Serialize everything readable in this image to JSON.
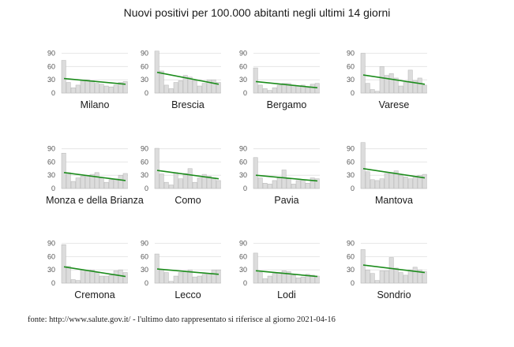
{
  "chart_data": {
    "type": "bar",
    "title": "Nuovi positivi per 100.000 abitanti negli ultimi 14 giorni",
    "ylim": [
      0,
      100
    ],
    "yticks": [
      0,
      30,
      60,
      90
    ],
    "grid": true,
    "colors": {
      "bar_fill": "#dcdcdc",
      "bar_stroke": "#b4b4b4",
      "trend": "#1c8c1c",
      "grid": "#e6e6e6"
    },
    "panels": [
      {
        "name": "Milano",
        "values": [
          74,
          24,
          12,
          18,
          30,
          30,
          28,
          22,
          20,
          16,
          14,
          18,
          24,
          26
        ],
        "trend": [
          33,
          20
        ]
      },
      {
        "name": "Brescia",
        "values": [
          95,
          50,
          18,
          10,
          24,
          28,
          40,
          36,
          28,
          16,
          22,
          30,
          30,
          24
        ],
        "trend": [
          47,
          20
        ]
      },
      {
        "name": "Bergamo",
        "values": [
          57,
          18,
          10,
          6,
          12,
          18,
          22,
          22,
          18,
          16,
          18,
          12,
          20,
          22
        ],
        "trend": [
          26,
          12
        ]
      },
      {
        "name": "Varese",
        "values": [
          90,
          22,
          8,
          4,
          60,
          40,
          44,
          34,
          16,
          24,
          52,
          28,
          34,
          18
        ],
        "trend": [
          41,
          20
        ]
      },
      {
        "name": "Monza e della Brianza",
        "values": [
          80,
          36,
          16,
          24,
          28,
          30,
          32,
          36,
          24,
          14,
          20,
          22,
          30,
          34
        ],
        "trend": [
          36,
          18
        ]
      },
      {
        "name": "Como",
        "values": [
          91,
          33,
          14,
          8,
          36,
          22,
          34,
          45,
          14,
          24,
          32,
          28,
          24,
          18
        ],
        "trend": [
          41,
          22
        ]
      },
      {
        "name": "Pavia",
        "values": [
          70,
          24,
          12,
          10,
          18,
          24,
          42,
          22,
          10,
          18,
          20,
          12,
          24,
          22
        ],
        "trend": [
          30,
          17
        ]
      },
      {
        "name": "Mantova",
        "values": [
          104,
          38,
          20,
          18,
          22,
          34,
          36,
          40,
          30,
          26,
          22,
          28,
          30,
          32
        ],
        "trend": [
          45,
          24
        ]
      },
      {
        "name": "Cremona",
        "values": [
          87,
          38,
          8,
          6,
          30,
          28,
          30,
          24,
          16,
          16,
          18,
          28,
          30,
          24
        ],
        "trend": [
          37,
          15
        ]
      },
      {
        "name": "Lecco",
        "values": [
          66,
          30,
          24,
          4,
          16,
          24,
          26,
          30,
          14,
          16,
          20,
          22,
          30,
          30
        ],
        "trend": [
          32,
          20
        ]
      },
      {
        "name": "Lodi",
        "values": [
          68,
          24,
          10,
          16,
          22,
          24,
          28,
          26,
          18,
          12,
          14,
          20,
          18,
          16
        ],
        "trend": [
          28,
          15
        ]
      },
      {
        "name": "Sondrio",
        "values": [
          76,
          30,
          22,
          6,
          28,
          28,
          58,
          34,
          24,
          18,
          30,
          36,
          30,
          26
        ],
        "trend": [
          41,
          24
        ]
      }
    ]
  },
  "source_note": "fonte: http://www.salute.gov.it/ - l'ultimo dato rappresentato si riferisce al giorno 2021-04-16"
}
